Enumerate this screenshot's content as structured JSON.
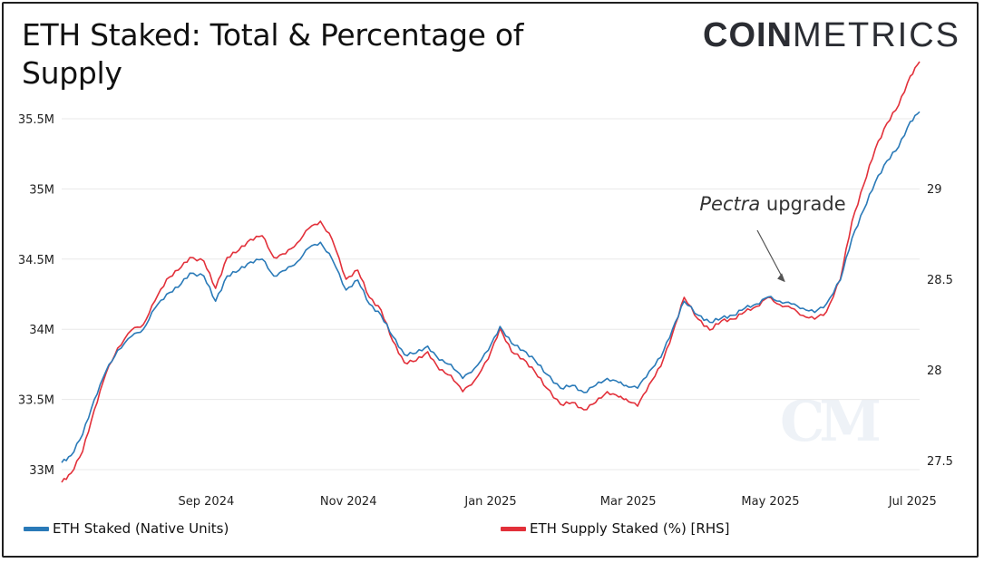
{
  "header": {
    "title": "ETH Staked: Total & Percentage of Supply",
    "brand_bold": "COIN",
    "brand_light": "METRICS"
  },
  "watermark": "CM",
  "legend": {
    "series1": "ETH Staked (Native Units)",
    "series2": "ETH Supply Staked (%) [RHS]"
  },
  "colors": {
    "series1": "#2a7ab8",
    "series2": "#e2303a",
    "grid": "#e8e8e8"
  },
  "chart_data": {
    "type": "line",
    "title": "ETH Staked: Total & Percentage of Supply",
    "annotation": {
      "text_italic": "Pectra",
      "text": "upgrade",
      "target_date": "2025-05-07"
    },
    "x_tick_labels": [
      "Sep 2024",
      "Nov 2024",
      "Jan 2025",
      "Mar 2025",
      "May 2025",
      "Jul 2025"
    ],
    "x_tick_dates": [
      "2024-09-01",
      "2024-11-01",
      "2025-01-01",
      "2025-03-01",
      "2025-05-01",
      "2025-07-01"
    ],
    "xlim": [
      "2024-07-01",
      "2025-07-04"
    ],
    "y_left": {
      "ticks": [
        "33M",
        "33.5M",
        "34M",
        "34.5M",
        "35M",
        "35.5M"
      ],
      "tick_values": [
        33000000,
        33500000,
        34000000,
        34500000,
        35000000,
        35500000
      ],
      "range": [
        33000000,
        35500000
      ]
    },
    "y_right": {
      "ticks": [
        "27.5",
        "28",
        "28.5",
        "29"
      ],
      "tick_values": [
        27.5,
        28,
        28.5,
        29
      ],
      "range": [
        27.5,
        29.5
      ]
    },
    "grid": "horizontal",
    "legend_position": "bottom",
    "series": [
      {
        "name": "ETH Staked (Native Units)",
        "axis": "left",
        "x": [
          "2024-07-01",
          "2024-07-05",
          "2024-07-10",
          "2024-07-15",
          "2024-07-20",
          "2024-07-25",
          "2024-07-31",
          "2024-08-05",
          "2024-08-10",
          "2024-08-15",
          "2024-08-20",
          "2024-08-25",
          "2024-08-31",
          "2024-09-05",
          "2024-09-10",
          "2024-09-15",
          "2024-09-20",
          "2024-09-25",
          "2024-09-30",
          "2024-10-05",
          "2024-10-10",
          "2024-10-15",
          "2024-10-20",
          "2024-10-25",
          "2024-10-31",
          "2024-11-05",
          "2024-11-10",
          "2024-11-15",
          "2024-11-20",
          "2024-11-25",
          "2024-11-30",
          "2024-12-05",
          "2024-12-10",
          "2024-12-15",
          "2024-12-20",
          "2024-12-25",
          "2024-12-31",
          "2025-01-05",
          "2025-01-10",
          "2025-01-15",
          "2025-01-20",
          "2025-01-25",
          "2025-01-31",
          "2025-02-05",
          "2025-02-10",
          "2025-02-15",
          "2025-02-20",
          "2025-02-25",
          "2025-02-28",
          "2025-03-05",
          "2025-03-10",
          "2025-03-15",
          "2025-03-20",
          "2025-03-25",
          "2025-03-31",
          "2025-04-05",
          "2025-04-10",
          "2025-04-15",
          "2025-04-20",
          "2025-04-25",
          "2025-04-30",
          "2025-05-05",
          "2025-05-10",
          "2025-05-15",
          "2025-05-20",
          "2025-05-25",
          "2025-05-31",
          "2025-06-05",
          "2025-06-10",
          "2025-06-15",
          "2025-06-20",
          "2025-06-25",
          "2025-06-30",
          "2025-07-04"
        ],
        "values": [
          33050000,
          33100000,
          33250000,
          33500000,
          33700000,
          33850000,
          33950000,
          34000000,
          34150000,
          34250000,
          34300000,
          34400000,
          34380000,
          34200000,
          34380000,
          34420000,
          34480000,
          34500000,
          34380000,
          34420000,
          34480000,
          34580000,
          34620000,
          34500000,
          34280000,
          34350000,
          34180000,
          34100000,
          33950000,
          33820000,
          33830000,
          33880000,
          33780000,
          33750000,
          33650000,
          33720000,
          33850000,
          34020000,
          33900000,
          33850000,
          33780000,
          33680000,
          33580000,
          33600000,
          33550000,
          33600000,
          33650000,
          33620000,
          33600000,
          33580000,
          33700000,
          33800000,
          34000000,
          34200000,
          34100000,
          34050000,
          34080000,
          34100000,
          34150000,
          34180000,
          34230000,
          34200000,
          34180000,
          34150000,
          34120000,
          34180000,
          34350000,
          34650000,
          34850000,
          35050000,
          35200000,
          35300000,
          35480000,
          35550000
        ]
      },
      {
        "name": "ETH Supply Staked (%) [RHS]",
        "axis": "right",
        "x": [
          "2024-07-01",
          "2024-07-05",
          "2024-07-10",
          "2024-07-15",
          "2024-07-20",
          "2024-07-25",
          "2024-07-31",
          "2024-08-05",
          "2024-08-10",
          "2024-08-15",
          "2024-08-20",
          "2024-08-25",
          "2024-08-31",
          "2024-09-05",
          "2024-09-10",
          "2024-09-15",
          "2024-09-20",
          "2024-09-25",
          "2024-09-30",
          "2024-10-05",
          "2024-10-10",
          "2024-10-15",
          "2024-10-20",
          "2024-10-25",
          "2024-10-31",
          "2024-11-05",
          "2024-11-10",
          "2024-11-15",
          "2024-11-20",
          "2024-11-25",
          "2024-11-30",
          "2024-12-05",
          "2024-12-10",
          "2024-12-15",
          "2024-12-20",
          "2024-12-25",
          "2024-12-31",
          "2025-01-05",
          "2025-01-10",
          "2025-01-15",
          "2025-01-20",
          "2025-01-25",
          "2025-01-31",
          "2025-02-05",
          "2025-02-10",
          "2025-02-15",
          "2025-02-20",
          "2025-02-25",
          "2025-02-28",
          "2025-03-05",
          "2025-03-10",
          "2025-03-15",
          "2025-03-20",
          "2025-03-25",
          "2025-03-31",
          "2025-04-05",
          "2025-04-10",
          "2025-04-15",
          "2025-04-20",
          "2025-04-25",
          "2025-04-30",
          "2025-05-05",
          "2025-05-10",
          "2025-05-15",
          "2025-05-20",
          "2025-05-25",
          "2025-05-31",
          "2025-06-05",
          "2025-06-10",
          "2025-06-15",
          "2025-06-20",
          "2025-06-25",
          "2025-06-30",
          "2025-07-04"
        ],
        "values": [
          27.38,
          27.43,
          27.55,
          27.78,
          27.98,
          28.12,
          28.22,
          28.25,
          28.38,
          28.5,
          28.55,
          28.62,
          28.6,
          28.45,
          28.62,
          28.66,
          28.72,
          28.74,
          28.62,
          28.64,
          28.7,
          28.78,
          28.82,
          28.72,
          28.5,
          28.55,
          28.4,
          28.33,
          28.16,
          28.04,
          28.05,
          28.1,
          28,
          27.97,
          27.88,
          27.94,
          28.06,
          28.23,
          28.1,
          28.06,
          27.99,
          27.9,
          27.81,
          27.82,
          27.78,
          27.82,
          27.88,
          27.85,
          27.84,
          27.8,
          27.92,
          28.02,
          28.2,
          28.4,
          28.28,
          28.22,
          28.27,
          28.28,
          28.32,
          28.35,
          28.4,
          28.36,
          28.34,
          28.3,
          28.28,
          28.32,
          28.5,
          28.82,
          29.02,
          29.22,
          29.36,
          29.46,
          29.62,
          29.7
        ]
      }
    ]
  }
}
